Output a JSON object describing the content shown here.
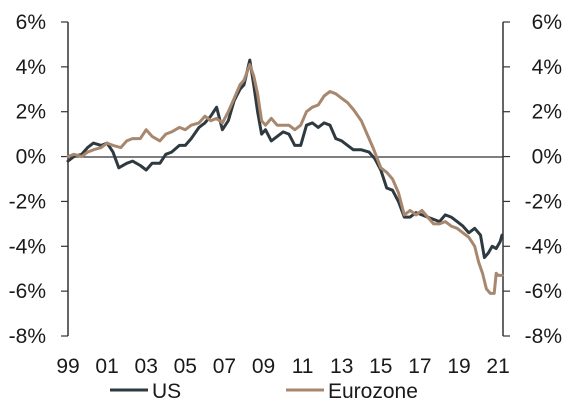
{
  "chart_data": {
    "type": "line",
    "title": "",
    "xlabel": "",
    "ylabel": "",
    "x_range": [
      1999.0,
      2021.25
    ],
    "ylim": [
      -8,
      6
    ],
    "y_ticks": [
      6,
      4,
      2,
      0,
      -2,
      -4,
      -6,
      -8
    ],
    "y_tick_labels": [
      "6%",
      "4%",
      "2%",
      "0%",
      "-2%",
      "-4%",
      "-6%",
      "-8%"
    ],
    "y_axes": [
      "left",
      "right"
    ],
    "x_ticks": [
      1999,
      2001,
      2003,
      2005,
      2007,
      2009,
      2011,
      2013,
      2015,
      2017,
      2019,
      2021
    ],
    "x_tick_labels": [
      "99",
      "01",
      "03",
      "05",
      "07",
      "09",
      "11",
      "13",
      "15",
      "17",
      "19",
      "21"
    ],
    "zero_line": true,
    "grid": false,
    "legend_position": "bottom",
    "series": [
      {
        "name": "US",
        "color": "#2e3a40",
        "points": [
          [
            1999.0,
            -0.2
          ],
          [
            1999.3,
            0.0
          ],
          [
            1999.7,
            0.1
          ],
          [
            2000.0,
            0.4
          ],
          [
            2000.3,
            0.6
          ],
          [
            2000.7,
            0.5
          ],
          [
            2001.0,
            0.6
          ],
          [
            2001.3,
            0.2
          ],
          [
            2001.6,
            -0.5
          ],
          [
            2002.0,
            -0.3
          ],
          [
            2002.3,
            -0.2
          ],
          [
            2002.7,
            -0.4
          ],
          [
            2003.0,
            -0.6
          ],
          [
            2003.3,
            -0.3
          ],
          [
            2003.7,
            -0.3
          ],
          [
            2004.0,
            0.1
          ],
          [
            2004.3,
            0.2
          ],
          [
            2004.7,
            0.5
          ],
          [
            2005.0,
            0.5
          ],
          [
            2005.3,
            0.8
          ],
          [
            2005.7,
            1.3
          ],
          [
            2006.0,
            1.5
          ],
          [
            2006.3,
            1.8
          ],
          [
            2006.6,
            2.2
          ],
          [
            2006.9,
            1.2
          ],
          [
            2007.2,
            1.6
          ],
          [
            2007.5,
            2.5
          ],
          [
            2007.8,
            3.0
          ],
          [
            2008.0,
            3.2
          ],
          [
            2008.3,
            4.3
          ],
          [
            2008.5,
            3.2
          ],
          [
            2008.7,
            2.0
          ],
          [
            2008.9,
            1.0
          ],
          [
            2009.1,
            1.2
          ],
          [
            2009.4,
            0.7
          ],
          [
            2009.7,
            0.9
          ],
          [
            2010.0,
            1.1
          ],
          [
            2010.3,
            1.0
          ],
          [
            2010.6,
            0.5
          ],
          [
            2010.9,
            0.5
          ],
          [
            2011.2,
            1.4
          ],
          [
            2011.5,
            1.5
          ],
          [
            2011.8,
            1.3
          ],
          [
            2012.1,
            1.5
          ],
          [
            2012.4,
            1.4
          ],
          [
            2012.7,
            0.8
          ],
          [
            2013.0,
            0.7
          ],
          [
            2013.3,
            0.5
          ],
          [
            2013.6,
            0.3
          ],
          [
            2014.0,
            0.3
          ],
          [
            2014.4,
            0.2
          ],
          [
            2014.7,
            -0.1
          ],
          [
            2015.0,
            -0.6
          ],
          [
            2015.3,
            -1.4
          ],
          [
            2015.6,
            -1.5
          ],
          [
            2015.9,
            -2.0
          ],
          [
            2016.2,
            -2.7
          ],
          [
            2016.5,
            -2.7
          ],
          [
            2016.8,
            -2.5
          ],
          [
            2017.1,
            -2.6
          ],
          [
            2017.4,
            -2.7
          ],
          [
            2017.7,
            -2.8
          ],
          [
            2018.0,
            -2.9
          ],
          [
            2018.3,
            -2.6
          ],
          [
            2018.6,
            -2.7
          ],
          [
            2018.9,
            -2.9
          ],
          [
            2019.2,
            -3.1
          ],
          [
            2019.5,
            -3.4
          ],
          [
            2019.8,
            -3.2
          ],
          [
            2020.1,
            -3.5
          ],
          [
            2020.3,
            -4.5
          ],
          [
            2020.5,
            -4.3
          ],
          [
            2020.7,
            -4.0
          ],
          [
            2020.9,
            -4.1
          ],
          [
            2021.1,
            -3.8
          ],
          [
            2021.2,
            -3.5
          ]
        ]
      },
      {
        "name": "Eurozone",
        "color": "#a7886f",
        "points": [
          [
            1999.0,
            0.0
          ],
          [
            1999.3,
            0.1
          ],
          [
            1999.7,
            0.0
          ],
          [
            2000.0,
            0.2
          ],
          [
            2000.3,
            0.3
          ],
          [
            2000.7,
            0.4
          ],
          [
            2001.0,
            0.6
          ],
          [
            2001.3,
            0.5
          ],
          [
            2001.7,
            0.4
          ],
          [
            2002.0,
            0.7
          ],
          [
            2002.3,
            0.8
          ],
          [
            2002.7,
            0.8
          ],
          [
            2003.0,
            1.2
          ],
          [
            2003.3,
            0.9
          ],
          [
            2003.7,
            0.7
          ],
          [
            2004.0,
            1.0
          ],
          [
            2004.3,
            1.1
          ],
          [
            2004.7,
            1.3
          ],
          [
            2005.0,
            1.2
          ],
          [
            2005.3,
            1.4
          ],
          [
            2005.7,
            1.5
          ],
          [
            2006.0,
            1.8
          ],
          [
            2006.3,
            1.6
          ],
          [
            2006.6,
            1.7
          ],
          [
            2006.9,
            1.5
          ],
          [
            2007.2,
            2.0
          ],
          [
            2007.5,
            2.6
          ],
          [
            2007.8,
            3.2
          ],
          [
            2008.0,
            3.4
          ],
          [
            2008.3,
            4.1
          ],
          [
            2008.5,
            3.6
          ],
          [
            2008.7,
            2.8
          ],
          [
            2008.9,
            1.6
          ],
          [
            2009.1,
            1.4
          ],
          [
            2009.4,
            1.7
          ],
          [
            2009.7,
            1.4
          ],
          [
            2010.0,
            1.4
          ],
          [
            2010.3,
            1.4
          ],
          [
            2010.6,
            1.2
          ],
          [
            2010.9,
            1.4
          ],
          [
            2011.2,
            2.0
          ],
          [
            2011.5,
            2.2
          ],
          [
            2011.8,
            2.3
          ],
          [
            2012.1,
            2.7
          ],
          [
            2012.4,
            2.9
          ],
          [
            2012.7,
            2.8
          ],
          [
            2013.0,
            2.6
          ],
          [
            2013.3,
            2.4
          ],
          [
            2013.6,
            2.1
          ],
          [
            2014.0,
            1.6
          ],
          [
            2014.3,
            1.0
          ],
          [
            2014.6,
            0.4
          ],
          [
            2015.0,
            -0.5
          ],
          [
            2015.3,
            -0.7
          ],
          [
            2015.6,
            -1.0
          ],
          [
            2015.9,
            -1.6
          ],
          [
            2016.2,
            -2.6
          ],
          [
            2016.5,
            -2.4
          ],
          [
            2016.8,
            -2.6
          ],
          [
            2017.1,
            -2.4
          ],
          [
            2017.4,
            -2.7
          ],
          [
            2017.7,
            -3.0
          ],
          [
            2018.0,
            -3.0
          ],
          [
            2018.3,
            -2.9
          ],
          [
            2018.6,
            -3.1
          ],
          [
            2018.9,
            -3.2
          ],
          [
            2019.2,
            -3.4
          ],
          [
            2019.5,
            -3.6
          ],
          [
            2019.8,
            -4.0
          ],
          [
            2020.0,
            -4.7
          ],
          [
            2020.2,
            -5.2
          ],
          [
            2020.4,
            -5.9
          ],
          [
            2020.6,
            -6.1
          ],
          [
            2020.8,
            -6.1
          ],
          [
            2020.9,
            -5.2
          ],
          [
            2021.0,
            -5.3
          ],
          [
            2021.2,
            -5.3
          ]
        ]
      }
    ]
  }
}
